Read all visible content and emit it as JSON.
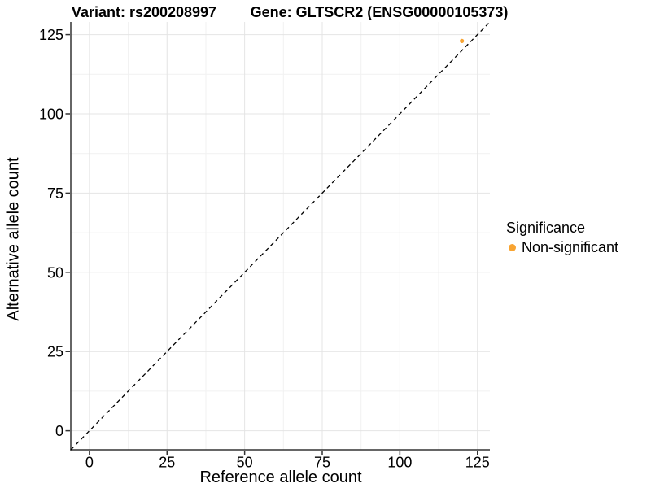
{
  "titles": {
    "variant": "Variant: rs200208997",
    "gene": "Gene: GLTSCR2 (ENSG00000105373)"
  },
  "chart_data": {
    "type": "scatter",
    "title": "Variant: rs200208997   Gene: GLTSCR2 (ENSG00000105373)",
    "xlabel": "Reference allele count",
    "ylabel": "Alternative allele count",
    "xlim": [
      -6,
      129
    ],
    "ylim": [
      -6,
      129
    ],
    "x_ticks": [
      0,
      25,
      50,
      75,
      100,
      125
    ],
    "y_ticks": [
      0,
      25,
      50,
      75,
      100,
      125
    ],
    "x_minor_ticks": [
      12.5,
      37.5,
      62.5,
      87.5,
      112.5
    ],
    "y_minor_ticks": [
      12.5,
      37.5,
      62.5,
      87.5,
      112.5
    ],
    "grid": true,
    "series": [
      {
        "name": "Non-significant",
        "color": "#F8A432",
        "marker_radius": 2.6,
        "points": [
          {
            "x": 120,
            "y": 123
          }
        ]
      }
    ],
    "reference_line": {
      "kind": "identity y=x",
      "style": "dashed",
      "color": "#000000"
    },
    "legend": {
      "title": "Significance",
      "position": "right",
      "entries": [
        {
          "label": "Non-significant",
          "color": "#F8A432"
        }
      ]
    },
    "style": {
      "grid_major_color": "#E4E4E4",
      "grid_minor_color": "#F1F1F1",
      "axis_line_color": "#333333",
      "tick_label_color": "#000000",
      "tick_label_size": 18,
      "background": "#FFFFFF"
    }
  }
}
